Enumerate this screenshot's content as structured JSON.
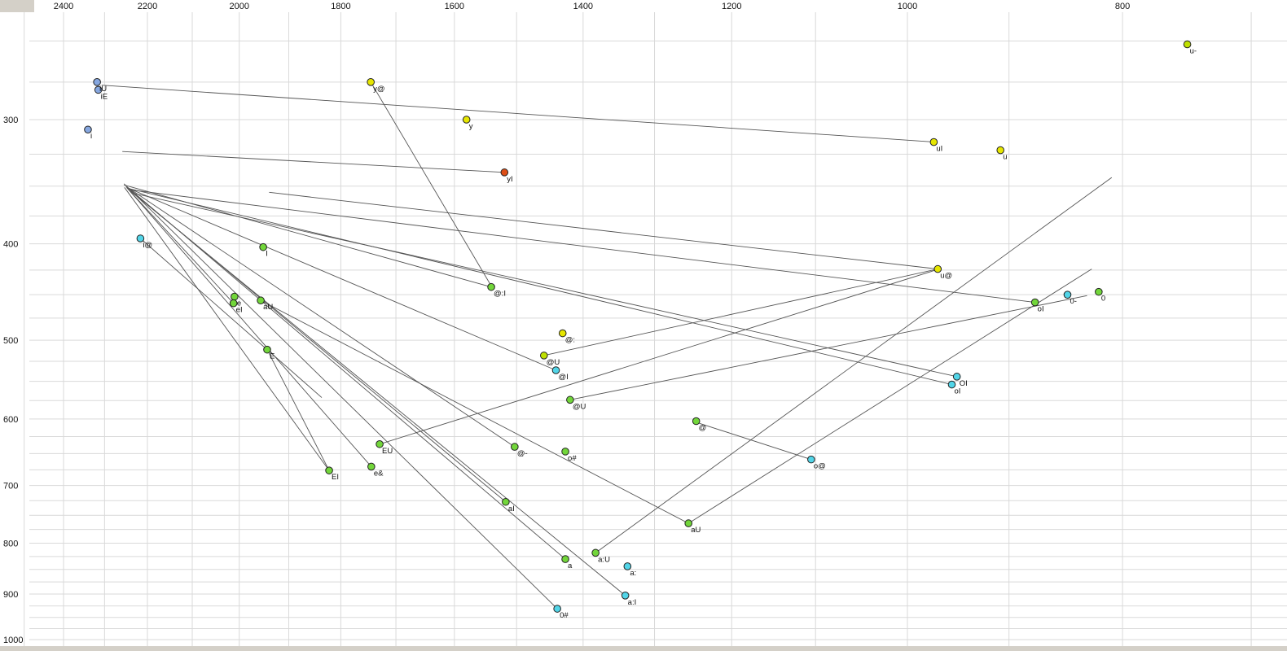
{
  "chart_data": {
    "type": "scatter",
    "title": "",
    "description": "Vowel formant plot: F2 on horizontal axis (reversed, log scale), F1 on vertical axis (reversed, log scale); labelled vowel/diphthong points with thin trajectory lines",
    "x_ticks": [
      "2400",
      "2200",
      "2000",
      "1800",
      "1600",
      "1400",
      "1200",
      "1000",
      "800"
    ],
    "y_ticks": [
      "300",
      "400",
      "500",
      "600",
      "700",
      "800",
      "900",
      "1000"
    ],
    "x_range": [
      2563,
      674
    ],
    "y_range": [
      227,
      1027
    ],
    "grid": {
      "x_minor_step": 100,
      "y_minor_step": 25,
      "on": true
    },
    "colors": {
      "green": "#72d63a",
      "cyan": "#52d5e8",
      "yellow": "#e6e600",
      "blue": "#86a7e0",
      "red": "#dd4e16",
      "yellow_green": "#bfe000",
      "grid": "#d9d9d9",
      "line": "#555555",
      "frame": "#d4d0c8",
      "point_stroke": "#222222"
    },
    "points": [
      {
        "label": "u-",
        "f2": 748,
        "f1": 252,
        "c": "yellow_green"
      },
      {
        "label": "iU",
        "f2": 2318,
        "f1": 275,
        "c": "blue"
      },
      {
        "label": "iE",
        "f2": 2315,
        "f1": 280,
        "c": "blue"
      },
      {
        "label": "i",
        "f2": 2340,
        "f1": 307,
        "c": "blue"
      },
      {
        "label": "i@",
        "f2": 2216,
        "f1": 395,
        "c": "cyan"
      },
      {
        "label": "y@",
        "f2": 1745,
        "f1": 275,
        "c": "yellow"
      },
      {
        "label": "y",
        "f2": 1580,
        "f1": 300,
        "c": "yellow"
      },
      {
        "label": "yI",
        "f2": 1519,
        "f1": 339,
        "c": "red"
      },
      {
        "label": "uI",
        "f2": 973,
        "f1": 316,
        "c": "yellow"
      },
      {
        "label": "u",
        "f2": 908,
        "f1": 322,
        "c": "yellow"
      },
      {
        "label": "u@",
        "f2": 969,
        "f1": 424,
        "c": "yellow"
      },
      {
        "label": "0-",
        "f2": 847,
        "f1": 450,
        "c": "cyan"
      },
      {
        "label": "0",
        "f2": 820,
        "f1": 447,
        "c": "green"
      },
      {
        "label": "oI",
        "f2": 876,
        "f1": 458,
        "c": "green"
      },
      {
        "label": "OI",
        "f2": 950,
        "f1": 544,
        "c": "cyan"
      },
      {
        "label": "oI",
        "f2": 955,
        "f1": 554,
        "c": "cyan"
      },
      {
        "label": "@:I",
        "f2": 1540,
        "f1": 442,
        "c": "green"
      },
      {
        "label": "I",
        "f2": 1951,
        "f1": 403,
        "c": "green"
      },
      {
        "label": "e",
        "f2": 2010,
        "f1": 452,
        "c": "green"
      },
      {
        "label": "eI",
        "f2": 2012,
        "f1": 459,
        "c": "green"
      },
      {
        "label": "aU",
        "f2": 1956,
        "f1": 456,
        "c": "green"
      },
      {
        "label": "E",
        "f2": 1943,
        "f1": 511,
        "c": "green"
      },
      {
        "label": "@:",
        "f2": 1430,
        "f1": 492,
        "c": "yellow"
      },
      {
        "label": "@U",
        "f2": 1458,
        "f1": 518,
        "c": "yellow_green"
      },
      {
        "label": "@I",
        "f2": 1440,
        "f1": 536,
        "c": "cyan"
      },
      {
        "label": "@U",
        "f2": 1419,
        "f1": 574,
        "c": "green"
      },
      {
        "label": "@-",
        "f2": 1503,
        "f1": 640,
        "c": "green"
      },
      {
        "label": "EU",
        "f2": 1729,
        "f1": 636,
        "c": "green"
      },
      {
        "label": "e&",
        "f2": 1744,
        "f1": 670,
        "c": "green"
      },
      {
        "label": "EI",
        "f2": 1822,
        "f1": 676,
        "c": "green"
      },
      {
        "label": "aI",
        "f2": 1517,
        "f1": 727,
        "c": "green"
      },
      {
        "label": "o#",
        "f2": 1426,
        "f1": 647,
        "c": "green"
      },
      {
        "label": "0#",
        "f2": 1438,
        "f1": 931,
        "c": "cyan"
      },
      {
        "label": "a",
        "f2": 1426,
        "f1": 830,
        "c": "green"
      },
      {
        "label": "a:U",
        "f2": 1382,
        "f1": 818,
        "c": "green"
      },
      {
        "label": "a:",
        "f2": 1337,
        "f1": 844,
        "c": "cyan"
      },
      {
        "label": "a:I",
        "f2": 1340,
        "f1": 903,
        "c": "cyan"
      },
      {
        "label": "aU",
        "f2": 1255,
        "f1": 764,
        "c": "green"
      },
      {
        "label": "o@",
        "f2": 1105,
        "f1": 659,
        "c": "cyan"
      },
      {
        "label": "@",
        "f2": 1245,
        "f1": 603,
        "c": "green"
      }
    ],
    "segments": [
      [
        2307,
        277,
        972,
        316
      ],
      [
        2258,
        323,
        1519,
        339
      ],
      [
        1745,
        275,
        1539,
        442
      ],
      [
        1540,
        442,
        2254,
        349
      ],
      [
        2216,
        395,
        1836,
        571
      ],
      [
        1822,
        676,
        2253,
        351
      ],
      [
        2012,
        459,
        2248,
        351
      ],
      [
        1517,
        727,
        2244,
        352
      ],
      [
        1340,
        903,
        2239,
        354
      ],
      [
        1438,
        931,
        2254,
        348
      ],
      [
        1440,
        536,
        2248,
        351
      ],
      [
        950,
        544,
        2230,
        356
      ],
      [
        876,
        458,
        2239,
        353
      ],
      [
        955,
        554,
        2242,
        352
      ],
      [
        1255,
        764,
        826,
        424
      ],
      [
        1382,
        818,
        809,
        343
      ],
      [
        1458,
        518,
        969,
        424
      ],
      [
        1419,
        574,
        830,
        451
      ],
      [
        1729,
        636,
        971,
        425
      ],
      [
        1105,
        659,
        1241,
        606
      ],
      [
        1943,
        511,
        1822,
        676
      ],
      [
        1426,
        830,
        2242,
        352
      ],
      [
        1939,
        355,
        969,
        424
      ],
      [
        1956,
        456,
        1255,
        764
      ],
      [
        1503,
        640,
        2250,
        350
      ],
      [
        1744,
        670,
        2248,
        351
      ]
    ]
  }
}
